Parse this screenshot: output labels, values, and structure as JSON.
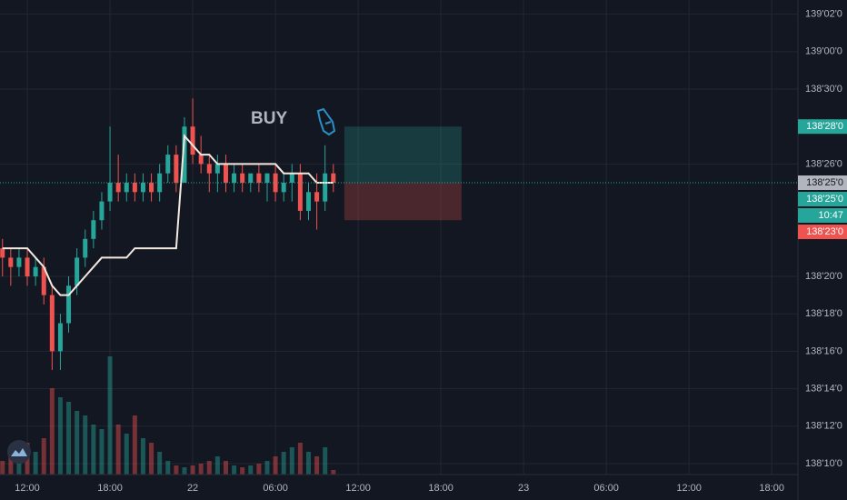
{
  "chart_data": {
    "type": "candlestick",
    "x": [
      -1.8,
      -1.2,
      -0.6,
      0,
      0.6,
      1.2,
      1.8,
      2.4,
      3,
      3.6,
      4.2,
      4.8,
      5.4,
      6,
      6.6,
      7.2,
      7.8,
      8.4,
      9,
      9.6,
      10.2,
      10.8,
      11.4,
      12,
      12.6,
      13.2,
      13.8,
      14.4,
      15,
      15.6,
      16.2,
      16.8,
      17.4,
      18,
      18.6,
      19.2,
      19.8,
      20.4,
      21,
      21.6,
      22.2
    ],
    "open": [
      138.671875,
      138.65625,
      138.640625,
      138.65625,
      138.625,
      138.640625,
      138.59375,
      138.5,
      138.546875,
      138.609375,
      138.65625,
      138.6875,
      138.71875,
      138.75,
      138.78125,
      138.765625,
      138.78125,
      138.765625,
      138.78125,
      138.765625,
      138.796875,
      138.828125,
      138.78125,
      138.875,
      138.828125,
      138.8125,
      138.796875,
      138.8125,
      138.78125,
      138.796875,
      138.78125,
      138.796875,
      138.78125,
      138.796875,
      138.765625,
      138.78125,
      138.796875,
      138.734375,
      138.765625,
      138.75,
      138.796875
    ],
    "high": [
      138.6875,
      138.671875,
      138.671875,
      138.671875,
      138.65625,
      138.65625,
      138.609375,
      138.5625,
      138.625,
      138.671875,
      138.703125,
      138.734375,
      138.765625,
      138.875,
      138.828125,
      138.796875,
      138.796875,
      138.796875,
      138.796875,
      138.8125,
      138.84375,
      138.84375,
      138.890625,
      138.921875,
      138.859375,
      138.828125,
      138.828125,
      138.828125,
      138.8125,
      138.8125,
      138.796875,
      138.8125,
      138.796875,
      138.8125,
      138.796875,
      138.8125,
      138.8125,
      138.78125,
      138.796875,
      138.84375,
      138.8125
    ],
    "low": [
      138.625,
      138.609375,
      138.625,
      138.609375,
      138.609375,
      138.578125,
      138.46875,
      138.46875,
      138.53125,
      138.59375,
      138.640625,
      138.671875,
      138.703125,
      138.734375,
      138.75,
      138.75,
      138.75,
      138.75,
      138.75,
      138.75,
      138.78125,
      138.765625,
      138.78125,
      138.8125,
      138.796875,
      138.765625,
      138.765625,
      138.765625,
      138.765625,
      138.765625,
      138.765625,
      138.765625,
      138.75,
      138.75,
      138.75,
      138.75,
      138.71875,
      138.71875,
      138.703125,
      138.734375,
      138.765625
    ],
    "close": [
      138.65625,
      138.640625,
      138.65625,
      138.625,
      138.640625,
      138.59375,
      138.5,
      138.546875,
      138.609375,
      138.65625,
      138.6875,
      138.71875,
      138.75,
      138.78125,
      138.765625,
      138.78125,
      138.765625,
      138.78125,
      138.765625,
      138.796875,
      138.828125,
      138.78125,
      138.875,
      138.828125,
      138.8125,
      138.796875,
      138.8125,
      138.78125,
      138.796875,
      138.78125,
      138.796875,
      138.78125,
      138.796875,
      138.765625,
      138.78125,
      138.796875,
      138.734375,
      138.765625,
      138.75,
      138.796875,
      138.78125
    ],
    "volume": [
      15,
      25,
      20,
      35,
      25,
      40,
      95,
      85,
      80,
      70,
      65,
      55,
      50,
      130,
      55,
      45,
      65,
      40,
      35,
      25,
      15,
      10,
      8,
      10,
      12,
      15,
      20,
      15,
      10,
      8,
      10,
      12,
      15,
      20,
      25,
      30,
      35,
      25,
      20,
      30,
      5
    ],
    "vlim": [
      0,
      522
    ],
    "up_color": "#26a69a",
    "down_color": "#ef5350",
    "ma": {
      "color": "#f3e9df",
      "values": [
        138.671875,
        138.671875,
        138.671875,
        138.671875,
        138.65625,
        138.640625,
        138.609375,
        138.59375,
        138.59375,
        138.609375,
        138.625,
        138.640625,
        138.65625,
        138.65625,
        138.65625,
        138.65625,
        138.671875,
        138.671875,
        138.671875,
        138.671875,
        138.671875,
        138.671875,
        138.859375,
        138.84375,
        138.828125,
        138.828125,
        138.8125,
        138.8125,
        138.8125,
        138.8125,
        138.8125,
        138.8125,
        138.8125,
        138.8125,
        138.796875,
        138.796875,
        138.796875,
        138.796875,
        138.78125,
        138.78125,
        138.78125
      ]
    },
    "xlim": [
      -1.98,
      55.9
    ],
    "xticks": [
      {
        "value": 0,
        "label": "12:00"
      },
      {
        "value": 6,
        "label": "18:00"
      },
      {
        "value": 12,
        "label": "22"
      },
      {
        "value": 18,
        "label": "06:00"
      },
      {
        "value": 24,
        "label": "12:00"
      },
      {
        "value": 30,
        "label": "18:00"
      },
      {
        "value": 36,
        "label": "23"
      },
      {
        "value": 42,
        "label": "06:00"
      },
      {
        "value": 48,
        "label": "12:00"
      },
      {
        "value": 54,
        "label": "18:00"
      }
    ],
    "ylim": [
      138.2943,
      139.0862
    ],
    "yticks": [
      {
        "value": 139.0625,
        "label": "139'02'0"
      },
      {
        "value": 139,
        "label": "139'00'0"
      },
      {
        "value": 138.9375,
        "label": "138'30'0"
      },
      {
        "value": 138.8125,
        "label": "138'26'0"
      },
      {
        "value": 138.625,
        "label": "138'20'0"
      },
      {
        "value": 138.5625,
        "label": "138'18'0"
      },
      {
        "value": 138.5,
        "label": "138'16'0"
      },
      {
        "value": 138.4375,
        "label": "138'14'0"
      },
      {
        "value": 138.375,
        "label": "138'12'0"
      },
      {
        "value": 138.3125,
        "label": "138'10'0"
      }
    ],
    "grid": true,
    "annotation": {
      "text": "BUY",
      "color": "#2a8fc7"
    },
    "position": {
      "x": [
        23,
        31.5
      ],
      "entry": 138.78125,
      "target": 138.875,
      "stop": 138.71875,
      "profit_color": "#26a69a",
      "loss_color": "#ef5350"
    },
    "price_labels": [
      {
        "value": 138.875,
        "label": "138'28'0",
        "color": "#26a69a"
      },
      {
        "value": 138.78125,
        "label": "138'25'0",
        "color": "#b2b5be"
      },
      {
        "value": 138.78125,
        "label": "138'25'0",
        "color": "#26a69a"
      },
      {
        "value": 138.71875,
        "label": "138'23'0",
        "color": "#ef5350"
      }
    ],
    "countdown": "10:47"
  }
}
